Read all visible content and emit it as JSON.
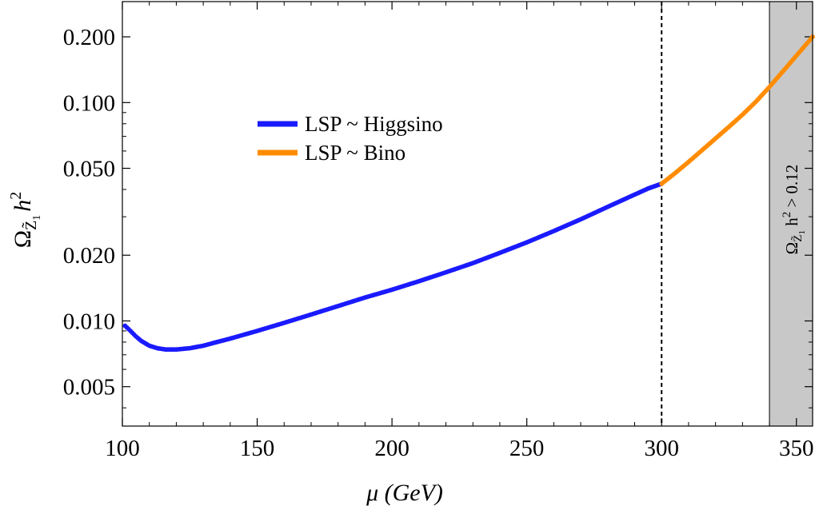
{
  "chart_data": {
    "type": "scatter",
    "title": "",
    "xlabel": "μ (GeV)",
    "ylabel": {
      "symbol": "Ω",
      "sub": "Z̃",
      "subsub": "1",
      "rest": "h",
      "sup": "2"
    },
    "xlim": [
      100,
      356
    ],
    "ylim": [
      0.0033,
      0.29
    ],
    "yscale": "log",
    "x_ticks": [
      {
        "value": 100,
        "label": "100"
      },
      {
        "value": 150,
        "label": "150"
      },
      {
        "value": 200,
        "label": "200"
      },
      {
        "value": 250,
        "label": "250"
      },
      {
        "value": 300,
        "label": "300"
      },
      {
        "value": 350,
        "label": "350"
      }
    ],
    "y_ticks": [
      {
        "value": 0.005,
        "label": "0.005"
      },
      {
        "value": 0.01,
        "label": "0.010"
      },
      {
        "value": 0.02,
        "label": "0.020"
      },
      {
        "value": 0.05,
        "label": "0.050"
      },
      {
        "value": 0.1,
        "label": "0.100"
      },
      {
        "value": 0.2,
        "label": "0.200"
      }
    ],
    "series": [
      {
        "name": "LSP ~ Higgsino",
        "color": "#1a1aff",
        "x": [
          101,
          103,
          105,
          107,
          110,
          113,
          116,
          120,
          125,
          130,
          135,
          140,
          150,
          160,
          170,
          180,
          190,
          200,
          210,
          220,
          230,
          240,
          250,
          260,
          270,
          280,
          290,
          295,
          300
        ],
        "y": [
          0.0095,
          0.009,
          0.0085,
          0.0081,
          0.0077,
          0.0075,
          0.0074,
          0.0074,
          0.0075,
          0.0077,
          0.008,
          0.0083,
          0.009,
          0.0098,
          0.0107,
          0.0117,
          0.0128,
          0.0139,
          0.0152,
          0.0167,
          0.0184,
          0.0205,
          0.0229,
          0.0258,
          0.0292,
          0.0333,
          0.0379,
          0.0404,
          0.0425
        ]
      },
      {
        "name": "LSP ~ Bino",
        "color": "#ff8c00",
        "x": [
          300,
          305,
          310,
          315,
          320,
          325,
          330,
          335,
          340,
          345,
          350,
          356
        ],
        "y": [
          0.0425,
          0.0475,
          0.0535,
          0.0605,
          0.0685,
          0.0775,
          0.088,
          0.101,
          0.118,
          0.139,
          0.164,
          0.2
        ]
      }
    ],
    "vline": {
      "x": 300,
      "style": "dashed",
      "color": "#000000"
    },
    "shaded_region": {
      "x_from": 340,
      "x_to": 356,
      "color": "#c8c8c8",
      "label": {
        "symbol": "Ω",
        "sub": "Z̃",
        "subsub": "1",
        "rest": " h",
        "sup": "2",
        "tail": " > 0.12"
      }
    },
    "legend": {
      "position": "upper-left",
      "entries": [
        "LSP ~ Higgsino",
        "LSP ~ Bino"
      ]
    }
  }
}
